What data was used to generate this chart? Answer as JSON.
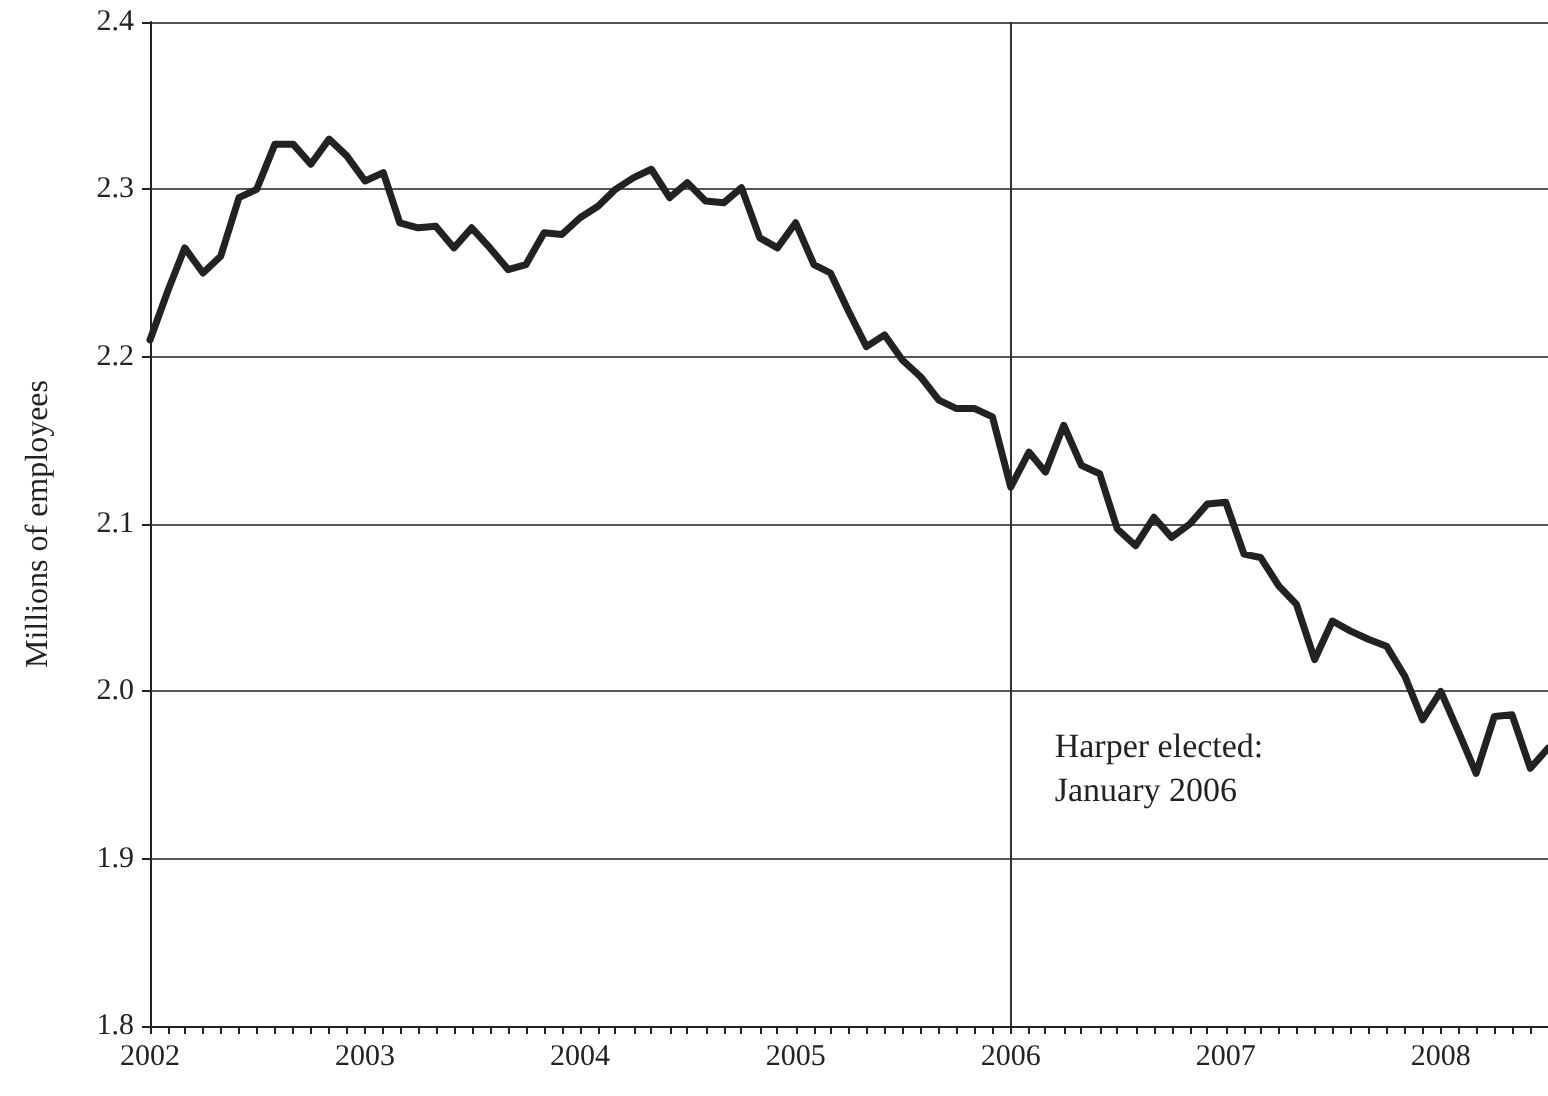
{
  "chart_data": {
    "type": "line",
    "ylabel": "Millions of employees",
    "x": [
      "2002-01",
      "2002-02",
      "2002-03",
      "2002-04",
      "2002-05",
      "2002-06",
      "2002-07",
      "2002-08",
      "2002-09",
      "2002-10",
      "2002-11",
      "2002-12",
      "2003-01",
      "2003-02",
      "2003-03",
      "2003-04",
      "2003-05",
      "2003-06",
      "2003-07",
      "2003-08",
      "2003-09",
      "2003-10",
      "2003-11",
      "2003-12",
      "2004-01",
      "2004-02",
      "2004-03",
      "2004-04",
      "2004-05",
      "2004-06",
      "2004-07",
      "2004-08",
      "2004-09",
      "2004-10",
      "2004-11",
      "2004-12",
      "2005-01",
      "2005-02",
      "2005-03",
      "2005-04",
      "2005-05",
      "2005-06",
      "2005-07",
      "2005-08",
      "2005-09",
      "2005-10",
      "2005-11",
      "2005-12",
      "2006-01",
      "2006-02",
      "2006-03",
      "2006-04",
      "2006-05",
      "2006-06",
      "2006-07",
      "2006-08",
      "2006-09",
      "2006-10",
      "2006-11",
      "2006-12",
      "2007-01",
      "2007-02",
      "2007-03",
      "2007-04",
      "2007-05",
      "2007-06",
      "2007-07",
      "2007-08",
      "2007-09",
      "2007-10",
      "2007-11",
      "2007-12",
      "2008-01",
      "2008-02",
      "2008-03",
      "2008-04",
      "2008-05",
      "2008-06",
      "2008-07"
    ],
    "xlim": [
      "2002-01",
      "2008-07"
    ],
    "xticks": [
      "2002",
      "2003",
      "2004",
      "2005",
      "2006",
      "2007",
      "2008"
    ],
    "ylim": [
      1.8,
      2.4
    ],
    "yticks": [
      {
        "value": 1.8,
        "label": "1.8"
      },
      {
        "value": 1.9,
        "label": "1.9"
      },
      {
        "value": 2.0,
        "label": "2.0"
      },
      {
        "value": 2.1,
        "label": "2.1"
      },
      {
        "value": 2.2,
        "label": "2.2"
      },
      {
        "value": 2.3,
        "label": "2.3"
      },
      {
        "value": 2.4,
        "label": "2.4"
      }
    ],
    "grid": "y",
    "marker": "none",
    "line_style": "solid",
    "ref_lines": [
      {
        "axis": "x",
        "value": "2006-01",
        "color": "#333333"
      }
    ],
    "annotations": [
      "Harper elected:\nJanuary 2006"
    ],
    "series": [
      {
        "color": "#222222",
        "values": [
          2.21,
          2.24,
          2.265,
          2.25,
          2.26,
          2.295,
          2.3,
          2.327,
          2.327,
          2.315,
          2.33,
          2.32,
          2.305,
          2.31,
          2.28,
          2.277,
          2.278,
          2.265,
          2.277,
          2.265,
          2.252,
          2.255,
          2.274,
          2.273,
          2.283,
          2.29,
          2.3,
          2.307,
          2.312,
          2.295,
          2.304,
          2.293,
          2.292,
          2.301,
          2.271,
          2.265,
          2.28,
          2.255,
          2.25,
          2.227,
          2.206,
          2.213,
          2.198,
          2.188,
          2.174,
          2.169,
          2.169,
          2.164,
          2.122,
          2.143,
          2.131,
          2.159,
          2.135,
          2.13,
          2.097,
          2.087,
          2.104,
          2.092,
          2.1,
          2.112,
          2.113,
          2.082,
          2.08,
          2.063,
          2.052,
          2.019,
          2.042,
          2.036,
          2.031,
          2.027,
          2.009,
          1.983,
          2.0,
          1.975,
          1.951,
          1.985,
          1.986,
          1.954,
          1.966
        ]
      }
    ]
  }
}
